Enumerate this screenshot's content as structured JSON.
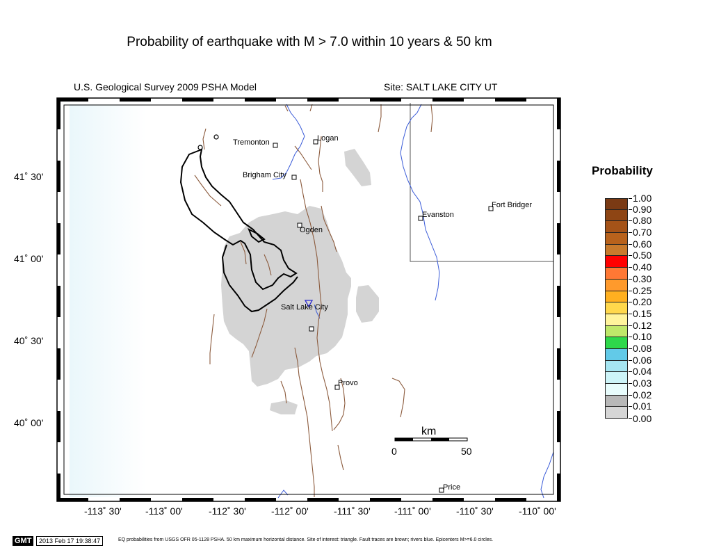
{
  "title": "Probability of earthquake with M > 7.0 within 10 years & 50 km",
  "model": "U.S. Geological Survey 2009 PSHA Model",
  "site": "Site: SALT  LAKE CITY UT",
  "lat_labels": [
    "41˚ 30'",
    "41˚ 00'",
    "40˚ 30'",
    "40˚ 00'"
  ],
  "lon_labels": [
    "-113˚ 30'",
    "-113˚ 00'",
    "-112˚ 30'",
    "-112˚ 00'",
    "-111˚ 30'",
    "-111˚ 00'",
    "-110˚ 30'",
    "-110˚ 00'"
  ],
  "cities": {
    "tremonton": "Tremonton",
    "logan": "Logan",
    "brigham": "Brigham City",
    "ogden": "Ogden",
    "slc": "Salt Lake City",
    "provo": "Provo",
    "evanston": "Evanston",
    "fort_bridger": "Fort Bridger",
    "price": "Price"
  },
  "scale": {
    "unit": "km",
    "min": "0",
    "max": "50"
  },
  "legend": {
    "title": "Probability",
    "entries": [
      {
        "label": "1.00",
        "color": "#7a3a14"
      },
      {
        "label": "0.90",
        "color": "#8e4514"
      },
      {
        "label": "0.80",
        "color": "#a55318"
      },
      {
        "label": "0.70",
        "color": "#b8621c"
      },
      {
        "label": "0.60",
        "color": "#c87a2c"
      },
      {
        "label": "0.50",
        "color": "#ff0000"
      },
      {
        "label": "0.40",
        "color": "#ff7834"
      },
      {
        "label": "0.30",
        "color": "#ff9a2c"
      },
      {
        "label": "0.25",
        "color": "#ffb020"
      },
      {
        "label": "0.20",
        "color": "#ffd84c"
      },
      {
        "label": "0.15",
        "color": "#fff49c"
      },
      {
        "label": "0.12",
        "color": "#bfe86a"
      },
      {
        "label": "0.10",
        "color": "#2ed84a"
      },
      {
        "label": "0.08",
        "color": "#62cae8"
      },
      {
        "label": "0.06",
        "color": "#a6e6f2"
      },
      {
        "label": "0.04",
        "color": "#cdf4f8"
      },
      {
        "label": "0.03",
        "color": "#e8fcfc"
      },
      {
        "label": "0.02",
        "color": "#b8b8b8"
      },
      {
        "label": "0.01",
        "color": "#d6d6d6"
      }
    ],
    "bottom_label": "0.00",
    "bottom_color": "#ffffff"
  },
  "colors": {
    "fault": "#8b5a3c",
    "river": "#3a5bd8",
    "coast": "#000000",
    "hazard_gray": "#d4d4d4"
  },
  "footer": {
    "badge": "GMT",
    "stamp": "2013 Feb 17 19:38:47",
    "note": "EQ probabilities from USGS OFR 05-1128 PSHA. 50 km maximum horizontal distance. Site of interest: triangle. Fault traces are brown; rivers blue. Epicenters M>=6.0 circles."
  }
}
